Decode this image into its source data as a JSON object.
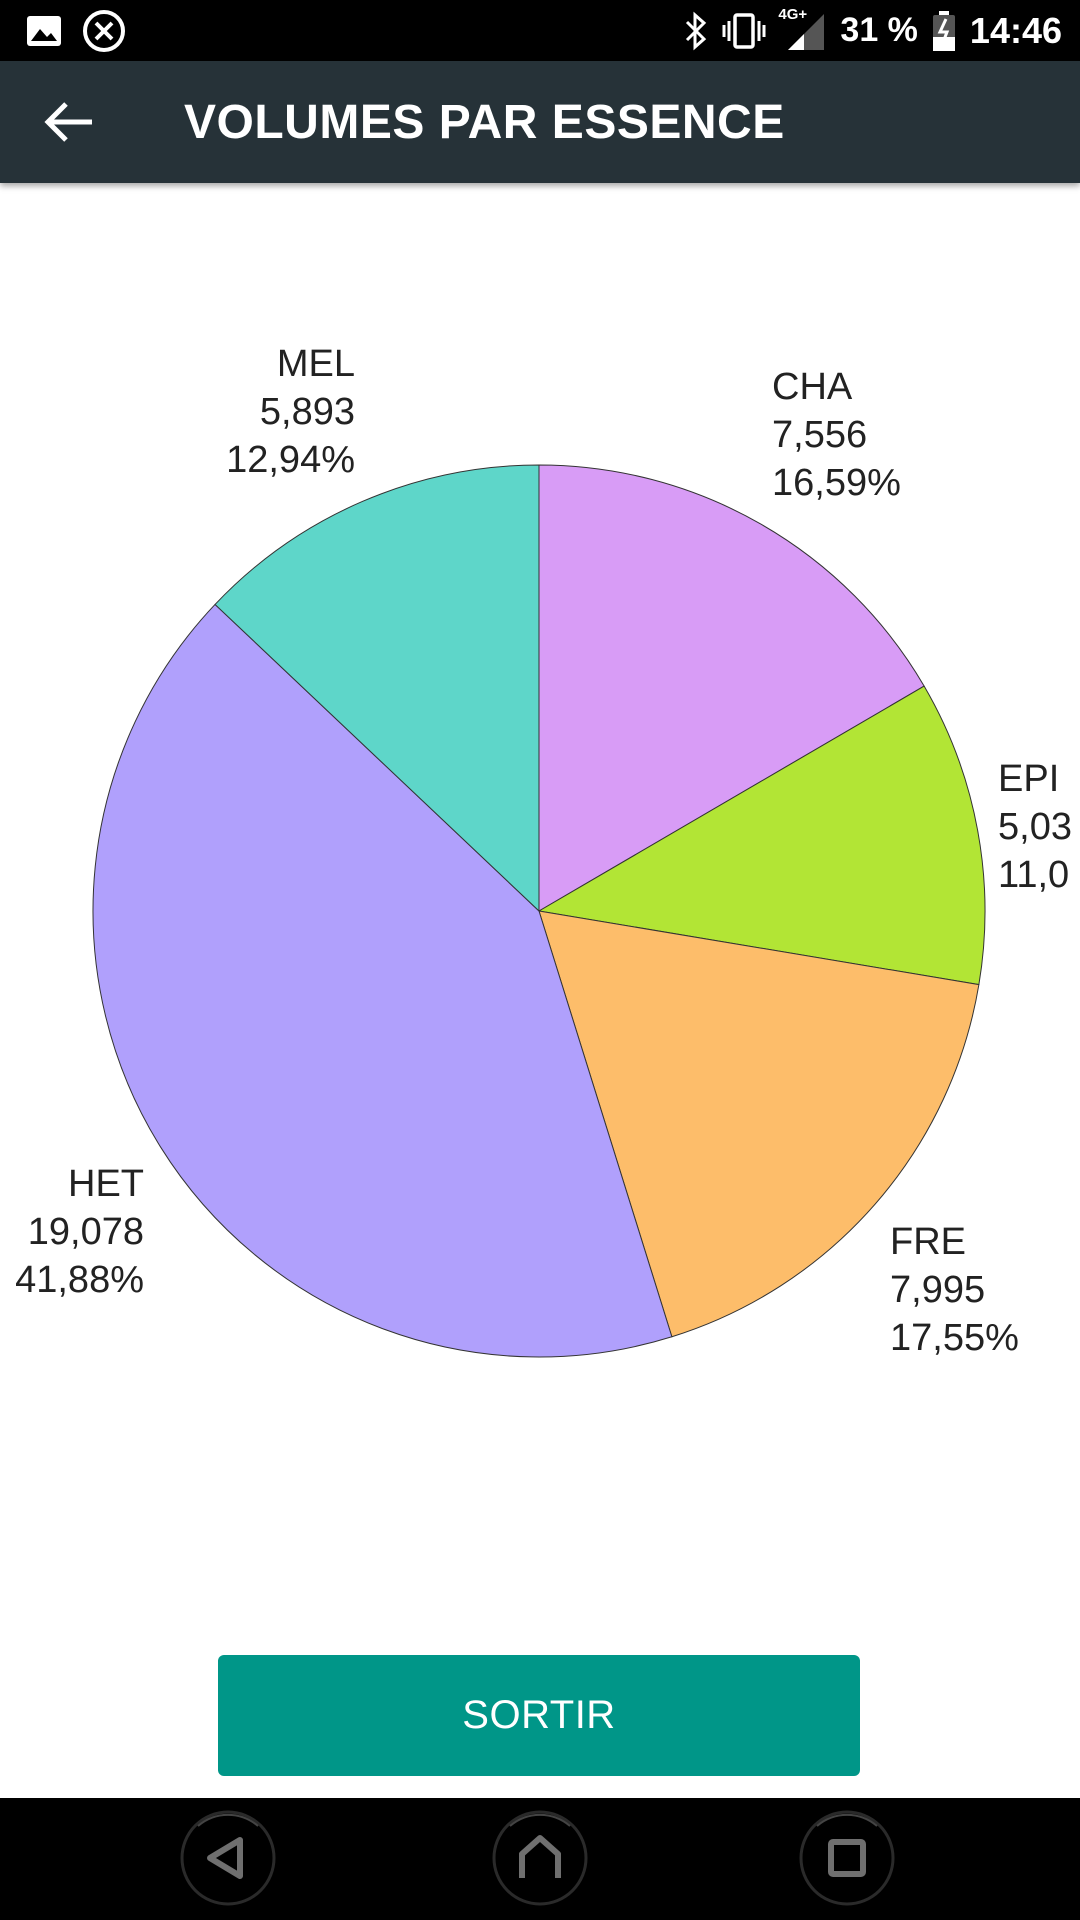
{
  "status_bar": {
    "icons_left": [
      "image-icon",
      "close-circle-icon"
    ],
    "icons_right": [
      "bluetooth-icon",
      "vibrate-icon",
      "signal-4g-icon",
      "battery-icon"
    ],
    "network": "4G+",
    "battery": "31 %",
    "time": "14:46"
  },
  "app_bar": {
    "title": "VOLUMES PAR ESSENCE",
    "back_icon": "arrow-back-icon"
  },
  "chart_data": {
    "type": "pie",
    "title": "",
    "slices": [
      {
        "label": "CHA",
        "value": "7,556",
        "percent": "16,59%",
        "share": 16.59,
        "color": "#d89cf6"
      },
      {
        "label": "EPI",
        "value": "5,03",
        "percent": "11,0",
        "share": 11.05,
        "color": "#b2e535"
      },
      {
        "label": "FRE",
        "value": "7,995",
        "percent": "17,55%",
        "share": 17.55,
        "color": "#fdbd6a"
      },
      {
        "label": "HET",
        "value": "19,078",
        "percent": "41,88%",
        "share": 41.88,
        "color": "#b0a0fc"
      },
      {
        "label": "MEL",
        "value": "5,893",
        "percent": "12,94%",
        "share": 12.94,
        "color": "#5ed6c9"
      }
    ]
  },
  "actions": {
    "exit_label": "SORTIR"
  },
  "nav_bar": {
    "buttons": [
      "nav-back-icon",
      "nav-home-icon",
      "nav-recents-icon"
    ]
  }
}
